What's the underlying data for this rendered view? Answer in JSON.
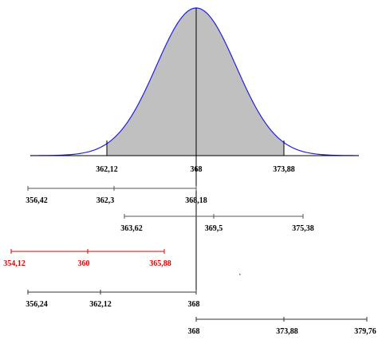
{
  "curve": {
    "labels": [
      "362,12",
      "368",
      "373,88"
    ]
  },
  "intervals": [
    {
      "labels": [
        "356,42",
        "362,3",
        "368,18"
      ]
    },
    {
      "labels": [
        "363,62",
        "369,5",
        "375,38"
      ]
    },
    {
      "labels": [
        "354,12",
        "360",
        "365,88"
      ]
    },
    {
      "labels": [
        "356,24",
        "362,12",
        "368"
      ]
    },
    {
      "labels": [
        "368",
        "373,88",
        "379,76"
      ]
    }
  ]
}
